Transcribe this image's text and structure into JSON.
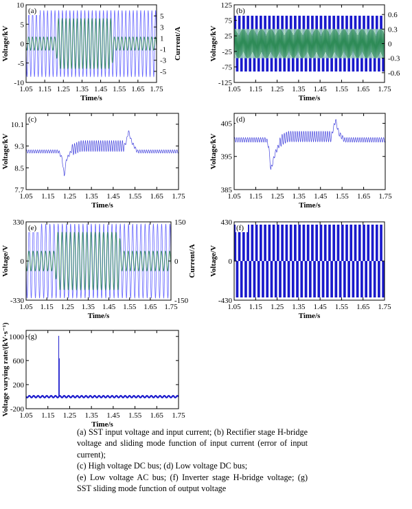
{
  "figure": {
    "caption": [
      "(a) SST input voltage and input current; (b) Rectifier stage H-bridge voltage and sliding mode function of input current (error of input current);",
      "(c) High voltage DC bus; (d) Low voltage DC bus;",
      "(e) Low voltage AC bus; (f) Inverter stage H-bridge voltage; (g) SST sliding mode function of output voltage"
    ]
  },
  "chart_data": [
    {
      "panel": "(a)",
      "type": "line",
      "xlabel": "Time/s",
      "ylabel": "Voltage/kV",
      "ylabel_right": "Current/A",
      "xlim": [
        1.05,
        1.75
      ],
      "xticks": [
        "1.05",
        "1.15",
        "1.25",
        "1.35",
        "1.45",
        "1.55",
        "1.65",
        "1.75"
      ],
      "ylim": [
        -10,
        10
      ],
      "yticks": [
        "-10",
        "-5",
        "0",
        "5",
        "10"
      ],
      "ylim_right": [
        -7,
        7
      ],
      "yticks_right": [
        "-5",
        "-3",
        "-1",
        "1",
        "3",
        "5"
      ],
      "series": [
        {
          "role": "voltage",
          "axis": "left",
          "color": "#6666ff",
          "frequency_hz": 50,
          "amplitude": 8.5
        },
        {
          "role": "current",
          "axis": "right",
          "color": "#2e8b57",
          "frequency_hz": 50,
          "amplitude_by_time": [
            [
              1.05,
              1.2
            ],
            [
              1.21,
              1.2
            ],
            [
              1.22,
              4.5
            ],
            [
              1.51,
              4.5
            ],
            [
              1.52,
              1.2
            ],
            [
              1.75,
              1.2
            ]
          ]
        }
      ]
    },
    {
      "panel": "(b)",
      "type": "line",
      "xlabel": "Time/s",
      "ylabel": "Voltage/kV",
      "xlim": [
        1.05,
        1.75
      ],
      "xticks": [
        "1.05",
        "1.15",
        "1.25",
        "1.35",
        "1.45",
        "1.55",
        "1.65",
        "1.75"
      ],
      "ylim": [
        -125,
        125
      ],
      "yticks": [
        "-125",
        "-75",
        "-25",
        "25",
        "75",
        "125"
      ],
      "ylim_right": [
        -0.8,
        0.8
      ],
      "yticks_right": [
        "-0.6",
        "-0.3",
        "0",
        "0.3",
        "0.6"
      ],
      "series": [
        {
          "role": "H-bridge voltage",
          "axis": "left",
          "color": "#1a1acc",
          "levels": [
            -90,
            0,
            90
          ],
          "frequency_hz": 50
        },
        {
          "role": "sliding mode function",
          "axis": "right",
          "color": "#2e8b57",
          "band": [
            -0.3,
            0.3
          ]
        }
      ]
    },
    {
      "panel": "(c)",
      "type": "line",
      "xlabel": "Time/s",
      "ylabel": "Voltage/kV",
      "xlim": [
        1.05,
        1.75
      ],
      "xticks": [
        "1.05",
        "1.15",
        "1.25",
        "1.35",
        "1.45",
        "1.55",
        "1.65",
        "1.75"
      ],
      "ylim": [
        7.7,
        10.5
      ],
      "yticks": [
        "7.7",
        "8.5",
        "9.3",
        "10.1"
      ],
      "series": [
        {
          "color": "#4444dd",
          "points": [
            [
              1.05,
              9.1
            ],
            [
              1.2,
              9.1
            ],
            [
              1.215,
              8.85
            ],
            [
              1.225,
              8.2
            ],
            [
              1.235,
              8.8
            ],
            [
              1.26,
              9.15
            ],
            [
              1.3,
              9.3
            ],
            [
              1.5,
              9.3
            ],
            [
              1.51,
              9.45
            ],
            [
              1.52,
              9.85
            ],
            [
              1.535,
              9.45
            ],
            [
              1.56,
              9.1
            ],
            [
              1.75,
              9.1
            ]
          ],
          "ripple_by_segment": [
            0.06,
            0.2,
            0.06
          ]
        }
      ]
    },
    {
      "panel": "(d)",
      "type": "line",
      "xlabel": "Time/s",
      "ylabel": "Voltage/kV",
      "xlim": [
        1.05,
        1.75
      ],
      "xticks": [
        "1.05",
        "1.15",
        "1.25",
        "1.35",
        "1.45",
        "1.55",
        "1.65",
        "1.75"
      ],
      "ylim": [
        385,
        408
      ],
      "yticks": [
        "385",
        "395",
        "405"
      ],
      "series": [
        {
          "color": "#4444dd",
          "points": [
            [
              1.05,
              400
            ],
            [
              1.2,
              400
            ],
            [
              1.21,
              398
            ],
            [
              1.22,
              391
            ],
            [
              1.24,
              396
            ],
            [
              1.27,
              400
            ],
            [
              1.3,
              401
            ],
            [
              1.5,
              401
            ],
            [
              1.51,
              403.5
            ],
            [
              1.52,
              406
            ],
            [
              1.535,
              402
            ],
            [
              1.56,
              400
            ],
            [
              1.75,
              400
            ]
          ],
          "ripple_by_segment": [
            0.7,
            1.6,
            0.7
          ]
        }
      ]
    },
    {
      "panel": "(e)",
      "type": "line",
      "xlabel": "Time/s",
      "ylabel": "Voltage/V",
      "ylabel_right": "Current/A",
      "xlim": [
        1.05,
        1.75
      ],
      "xticks": [
        "1.05",
        "1.15",
        "1.25",
        "1.35",
        "1.45",
        "1.55",
        "1.65",
        "1.75"
      ],
      "ylim": [
        -330,
        330
      ],
      "yticks": [
        "-330",
        "0",
        "330"
      ],
      "ylim_right": [
        -150,
        150
      ],
      "yticks_right": [
        "-150",
        "0",
        "150"
      ],
      "series": [
        {
          "role": "voltage",
          "axis": "left",
          "color": "#6666ff",
          "frequency_hz": 50,
          "amplitude": 311
        },
        {
          "role": "current",
          "axis": "right",
          "color": "#2e8b57",
          "frequency_hz": 50,
          "amplitude_by_time": [
            [
              1.05,
              38
            ],
            [
              1.19,
              38
            ],
            [
              1.2,
              110
            ],
            [
              1.5,
              110
            ],
            [
              1.51,
              38
            ],
            [
              1.75,
              38
            ]
          ]
        }
      ]
    },
    {
      "panel": "(f)",
      "type": "line",
      "xlabel": "Time/s",
      "ylabel": "Voltage/V",
      "xlim": [
        1.05,
        1.75
      ],
      "xticks": [
        "1.05",
        "1.15",
        "1.25",
        "1.35",
        "1.45",
        "1.55",
        "1.65",
        "1.75"
      ],
      "ylim": [
        -430,
        430
      ],
      "yticks": [
        "-430",
        "0",
        "430"
      ],
      "series": [
        {
          "role": "H-bridge voltage",
          "color": "#1a1acc",
          "levels": [
            -400,
            0,
            400
          ],
          "frequency_hz": 50
        }
      ]
    },
    {
      "panel": "(g)",
      "type": "line",
      "xlabel": "Time/s",
      "ylabel": "Voltage varying rate/(kV·s⁻¹)",
      "xlim": [
        1.05,
        1.75
      ],
      "xticks": [
        "1.05",
        "1.15",
        "1.25",
        "1.35",
        "1.45",
        "1.55",
        "1.65",
        "1.75"
      ],
      "ylim": [
        -200,
        1100
      ],
      "yticks": [
        "-200",
        "200",
        "600",
        "1000"
      ],
      "series": [
        {
          "color": "#1a1acc",
          "baseline": 0,
          "ripple": 15,
          "spike": {
            "x": 1.2,
            "y": 1010
          }
        }
      ]
    }
  ]
}
